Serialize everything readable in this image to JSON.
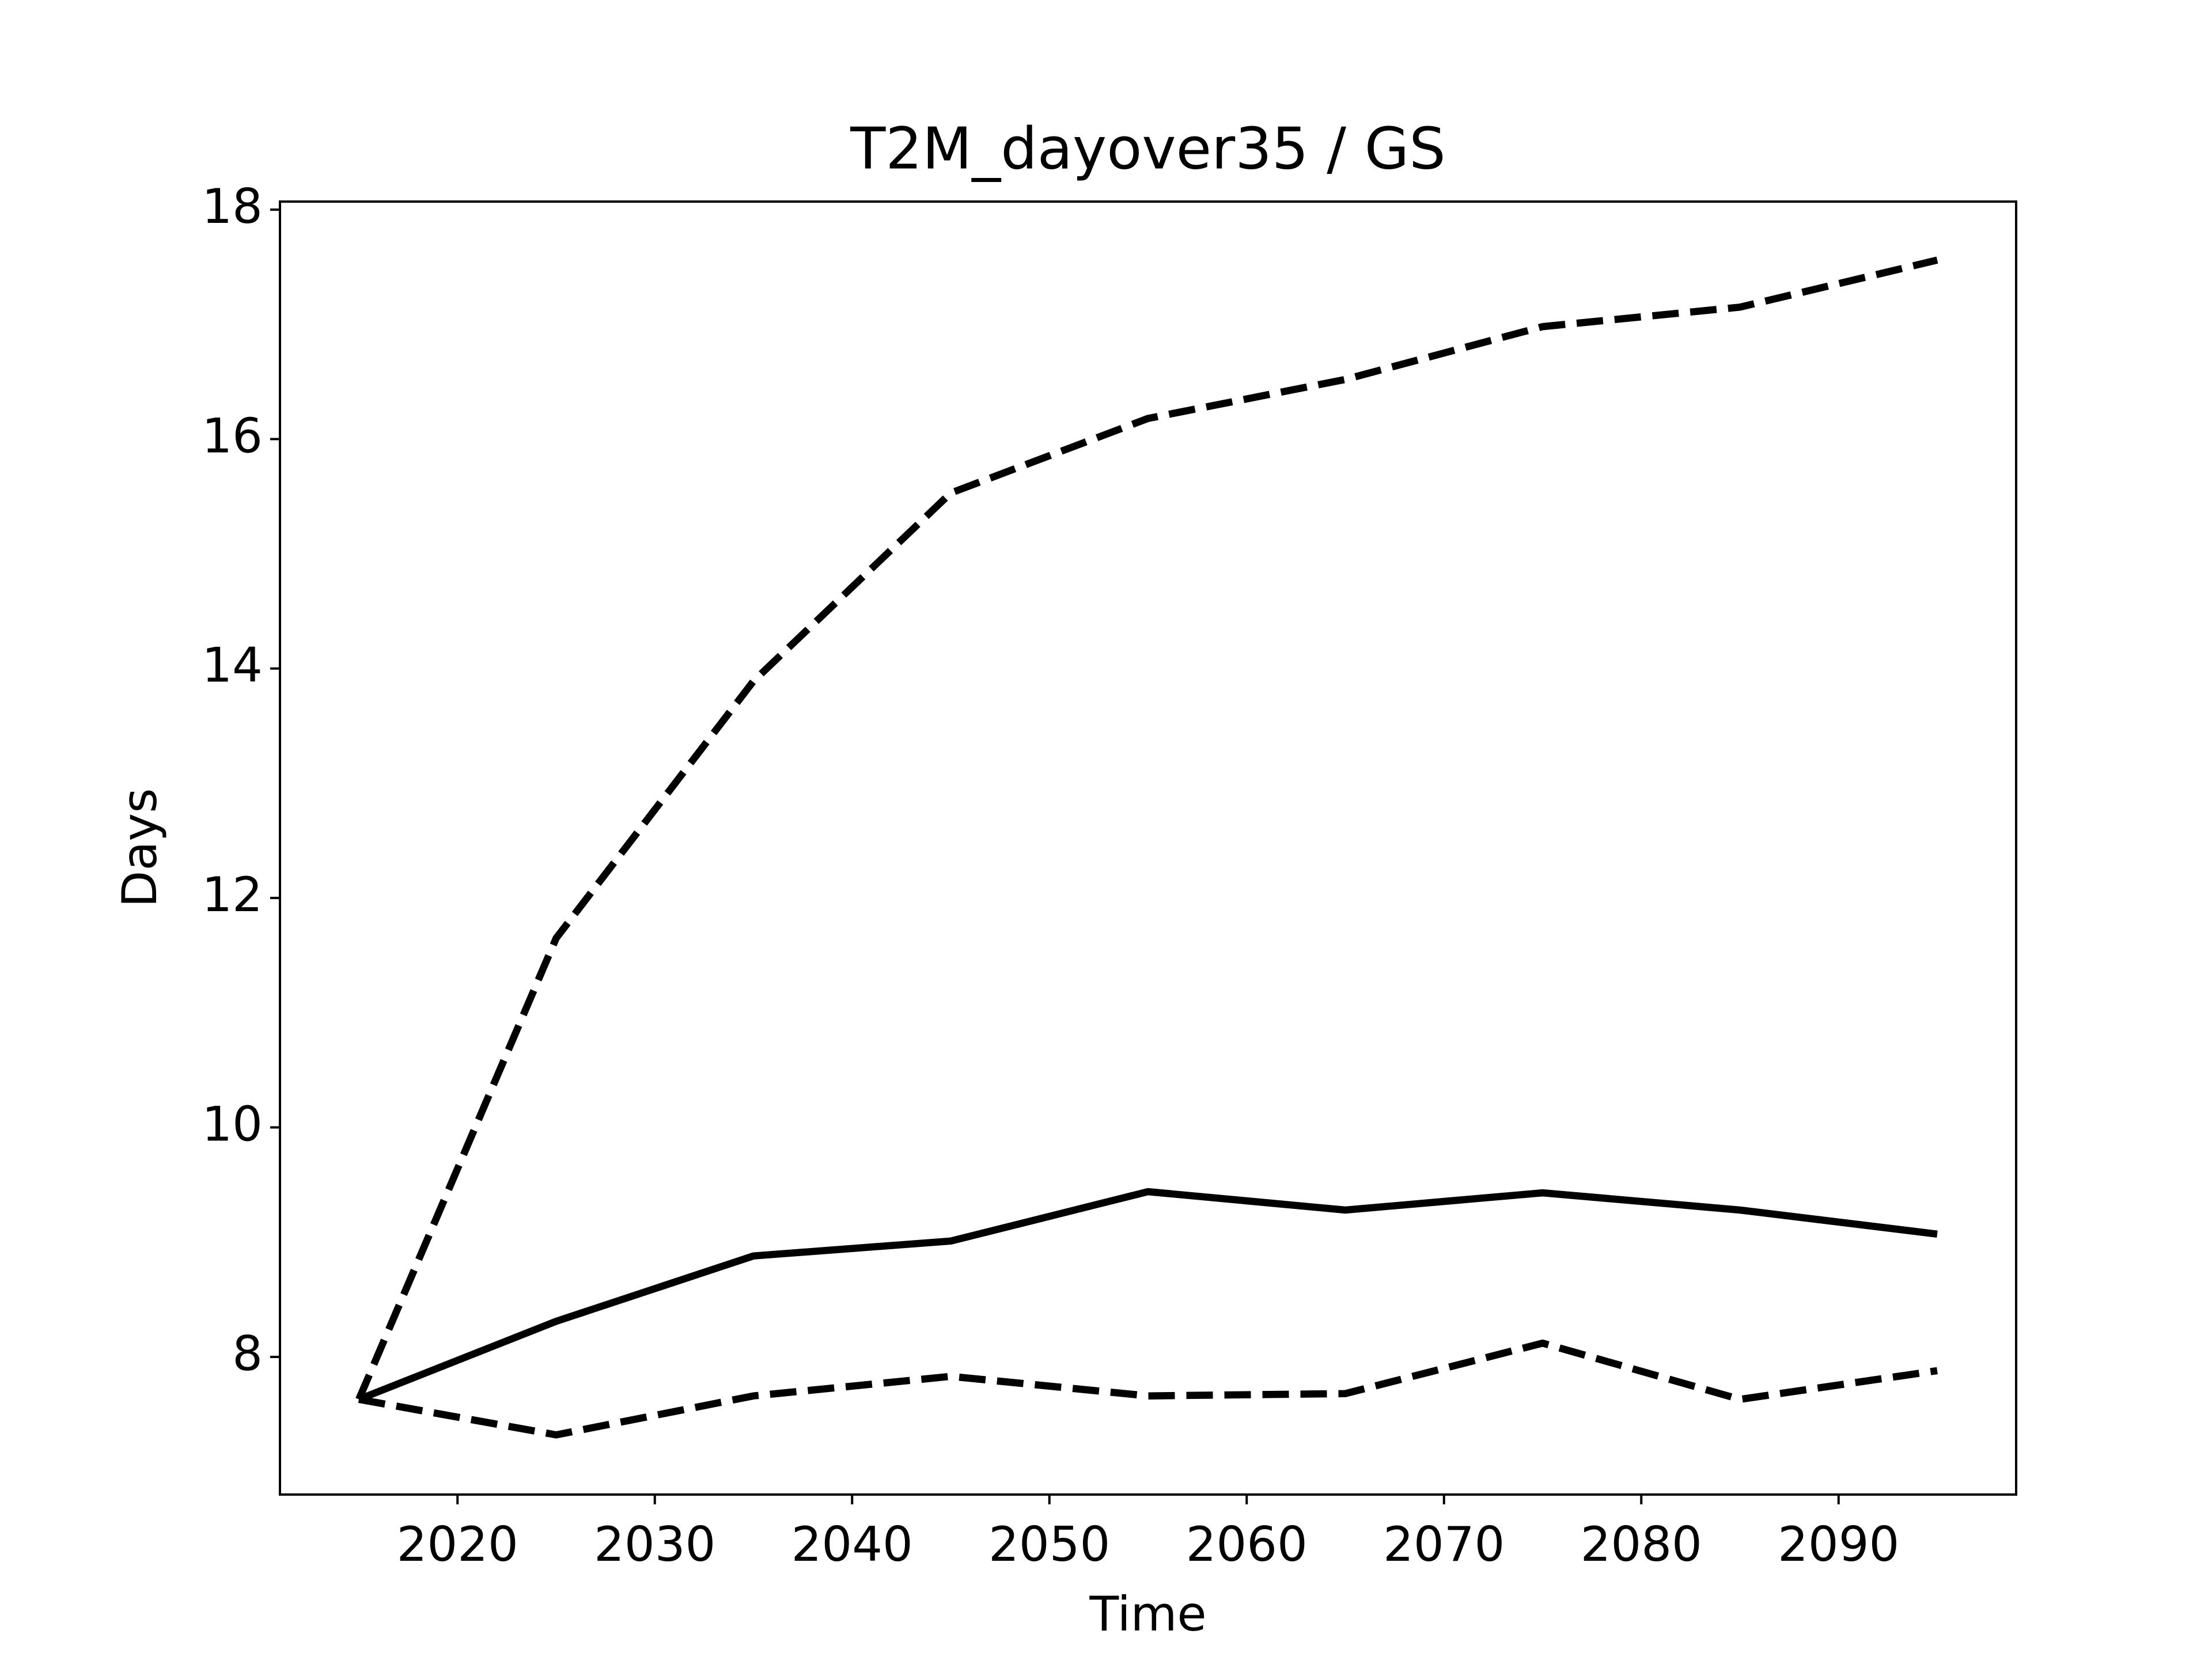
{
  "chart_data": {
    "type": "line",
    "title": "T2M_dayover35 / GS",
    "x_label": "Time",
    "y_label": "Days",
    "x": [
      2015,
      2025,
      2035,
      2045,
      2055,
      2065,
      2075,
      2085,
      2095
    ],
    "series": [
      {
        "color": "#000000",
        "linestyle": "solid",
        "values": [
          7.63,
          8.31,
          8.88,
          9.01,
          9.44,
          9.28,
          9.43,
          9.28,
          9.07
        ]
      },
      {
        "color": "#000000",
        "linestyle": "dashed",
        "values": [
          7.63,
          11.65,
          13.89,
          15.53,
          16.18,
          16.52,
          16.98,
          17.15,
          17.56
        ]
      },
      {
        "color": "#000000",
        "linestyle": "dashed",
        "values": [
          7.63,
          7.32,
          7.66,
          7.83,
          7.66,
          7.68,
          8.12,
          7.63,
          7.88
        ]
      }
    ],
    "xlim": [
      2011,
      2099
    ],
    "ylim": [
      6.8,
      18.07
    ],
    "xticks": [
      2020,
      2030,
      2040,
      2050,
      2060,
      2070,
      2080,
      2090
    ],
    "yticks": [
      8,
      10,
      12,
      14,
      16,
      18
    ],
    "grid": false
  }
}
